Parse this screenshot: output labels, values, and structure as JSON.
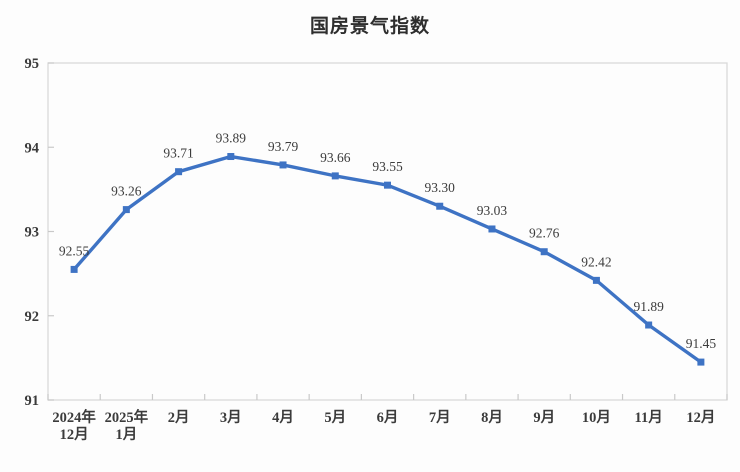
{
  "chart_data": {
    "type": "line",
    "title": "国房景气指数",
    "categories": [
      "2024年\n12月",
      "2025年\n1月",
      "2月",
      "3月",
      "4月",
      "5月",
      "6月",
      "7月",
      "8月",
      "9月",
      "10月",
      "11月",
      "12月"
    ],
    "series": [
      {
        "name": "国房景气指数",
        "values": [
          92.55,
          93.26,
          93.71,
          93.89,
          93.79,
          93.66,
          93.55,
          93.3,
          93.03,
          92.76,
          92.42,
          91.89,
          91.45
        ]
      }
    ],
    "data_labels": [
      "92.55",
      "93.26",
      "93.71",
      "93.89",
      "93.79",
      "93.66",
      "93.55",
      "93.30",
      "93.03",
      "92.76",
      "92.42",
      "91.89",
      "91.45"
    ],
    "xlabel": "",
    "ylabel": "",
    "ylim": [
      91,
      95
    ],
    "yticks": [
      91,
      92,
      93,
      94,
      95
    ],
    "grid": false,
    "legend": "none",
    "marker": "square",
    "colors": {
      "line": "#3e73c4",
      "marker": "#3e73c4",
      "text": "#3b3b3b",
      "title": "#2e2e2e",
      "axis_line": "#c9c9c9",
      "plot_border": "#d9d9d9",
      "background": "#fdfdfd"
    }
  }
}
